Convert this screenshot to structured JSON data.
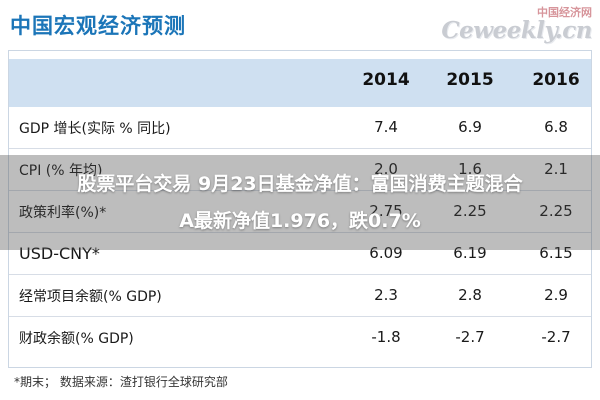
{
  "page_title": "中国宏观经济预测",
  "watermark": {
    "top_text": "中国经济网",
    "brand": "Ceweekly.cn"
  },
  "table": {
    "years": [
      "2014",
      "2015",
      "2016"
    ],
    "rows": [
      {
        "label": "GDP 增长(实际 % 同比)",
        "values": [
          "7.4",
          "6.9",
          "6.8"
        ]
      },
      {
        "label": "CPI (% 年均)",
        "values": [
          "2.0",
          "1.6",
          "2.1"
        ]
      },
      {
        "label": "政策利率(%)*",
        "values": [
          "2.75",
          "2.25",
          "2.25"
        ]
      },
      {
        "label": "USD-CNY*",
        "values": [
          "6.09",
          "6.19",
          "6.15"
        ]
      },
      {
        "label": "经常项目余额(% GDP)",
        "values": [
          "2.3",
          "2.8",
          "2.9"
        ]
      },
      {
        "label": "财政余额(% GDP)",
        "values": [
          "-1.8",
          "-2.7",
          "-2.7"
        ]
      }
    ]
  },
  "footnote": "*期末；   数据来源：渣打银行全球研究部",
  "overlay": {
    "line1": "股票平台交易 9月23日基金净值：富国消费主题混合",
    "line2": "A最新净值1.976，跌0.7%"
  }
}
